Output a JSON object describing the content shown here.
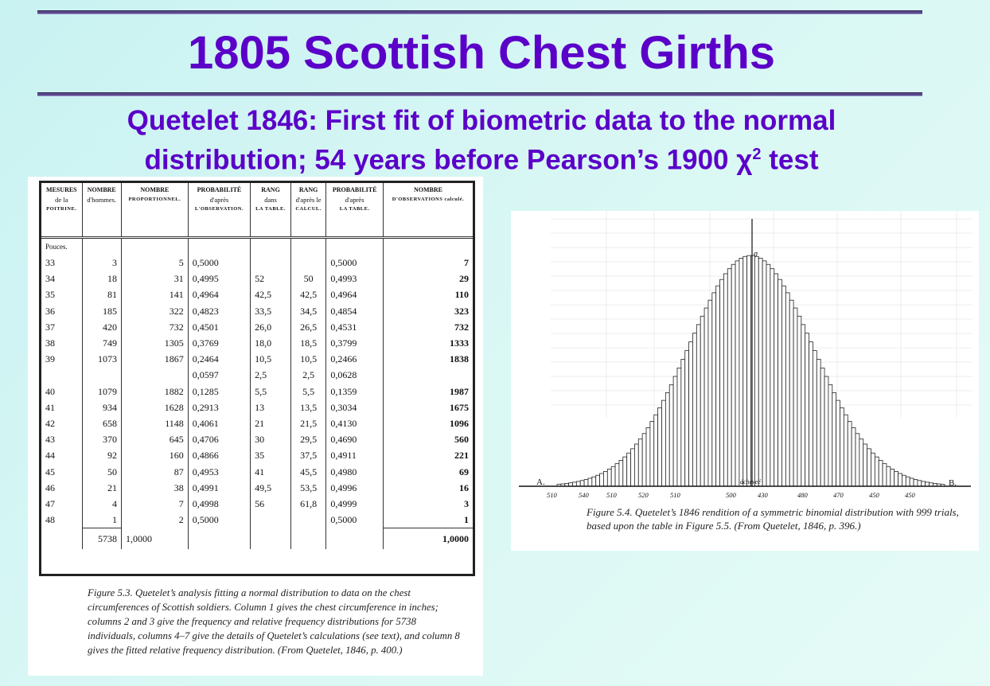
{
  "slide": {
    "title": "1805 Scottish Chest Girths",
    "subtitle_line1": "Quetelet 1846: First fit of biometric data to the normal",
    "subtitle_line2_pre": "distribution; 54 years before Pearson’s 1900 χ",
    "subtitle_sup": "2",
    "subtitle_line2_post": " test"
  },
  "table": {
    "headers": [
      {
        "main": "MESURES",
        "sub": "de la",
        "caps": "POITRINE."
      },
      {
        "main": "NOMBRE",
        "sub": "d'hommes.",
        "caps": ""
      },
      {
        "main": "NOMBRE",
        "sub": "",
        "caps": "PROPORTIONNEL."
      },
      {
        "main": "PROBABILITÉ",
        "sub": "d'après",
        "caps": "L'OBSERVATION."
      },
      {
        "main": "RANG",
        "sub": "dans",
        "caps": "LA TABLE."
      },
      {
        "main": "RANG",
        "sub": "d'après le",
        "caps": "CALCUL."
      },
      {
        "main": "PROBABILITÉ",
        "sub": "d'après",
        "caps": "LA TABLE."
      },
      {
        "main": "NOMBRE",
        "sub": "",
        "caps": "D'OBSERVATIONS calculé."
      }
    ],
    "pouces_label": "Pouces.",
    "rows": [
      [
        "33",
        "3",
        "5",
        "0,5000",
        "",
        "",
        "0,5000",
        "7"
      ],
      [
        "34",
        "18",
        "31",
        "0,4995",
        "52",
        "50",
        "0,4993",
        "29"
      ],
      [
        "35",
        "81",
        "141",
        "0,4964",
        "42,5",
        "42,5",
        "0,4964",
        "110"
      ],
      [
        "36",
        "185",
        "322",
        "0,4823",
        "33,5",
        "34,5",
        "0,4854",
        "323"
      ],
      [
        "37",
        "420",
        "732",
        "0,4501",
        "26,0",
        "26,5",
        "0,4531",
        "732"
      ],
      [
        "38",
        "749",
        "1305",
        "0,3769",
        "18,0",
        "18,5",
        "0,3799",
        "1333"
      ],
      [
        "39",
        "1073",
        "1867",
        "0,2464",
        "10,5",
        "10,5",
        "0,2466",
        "1838"
      ],
      [
        "",
        "",
        "",
        "0,0597",
        "2,5",
        "2,5",
        "0,0628",
        ""
      ],
      [
        "40",
        "1079",
        "1882",
        "0,1285",
        "5,5",
        "5,5",
        "0,1359",
        "1987"
      ],
      [
        "41",
        "934",
        "1628",
        "0,2913",
        "13",
        "13,5",
        "0,3034",
        "1675"
      ],
      [
        "42",
        "658",
        "1148",
        "0,4061",
        "21",
        "21,5",
        "0,4130",
        "1096"
      ],
      [
        "43",
        "370",
        "645",
        "0,4706",
        "30",
        "29,5",
        "0,4690",
        "560"
      ],
      [
        "44",
        "92",
        "160",
        "0,4866",
        "35",
        "37,5",
        "0,4911",
        "221"
      ],
      [
        "45",
        "50",
        "87",
        "0,4953",
        "41",
        "45,5",
        "0,4980",
        "69"
      ],
      [
        "46",
        "21",
        "38",
        "0,4991",
        "49,5",
        "53,5",
        "0,4996",
        "16"
      ],
      [
        "47",
        "4",
        "7",
        "0,4998",
        "56",
        "61,8",
        "0,4999",
        "3"
      ],
      [
        "48",
        "1",
        "2",
        "0,5000",
        "",
        "",
        "0,5000",
        "1"
      ]
    ],
    "total_men": "5738",
    "total_prop": "1,0000",
    "total_calc": "1,0000"
  },
  "left_caption": "Figure 5.3. Quetelet’s analysis fitting a normal distribution to data on the chest circumferences of Scottish soldiers. Column 1 gives the chest circumference in inches; columns 2 and 3 give the frequency and relative frequency distributions for 5738 individuals, columns 4–7 give the details of Quetelet’s calculations (see text), and column 8 gives the fitted relative frequency distribution. (From Quetelet, 1846, p. 400.)",
  "chart_data": {
    "type": "bar",
    "description_labels": {
      "left_end": "A.",
      "right_end": "B.",
      "peak": "σ"
    },
    "tick_labels": [
      "510",
      "540",
      "510",
      "520",
      "510",
      "500",
      "430",
      "480",
      "470",
      "450",
      "450"
    ],
    "center_label": "ácheveé",
    "bar_count": 100,
    "peak_index": 50
  },
  "right_caption": "Figure 5.4. Quetelet’s 1846 rendition of a symmetric binomial distribution with 999 trials, based upon the table in Figure 5.5. (From Quetelet, 1846, p. 396.)",
  "colors": {
    "title": "#5b00c8",
    "background": "#d8f7f4"
  }
}
